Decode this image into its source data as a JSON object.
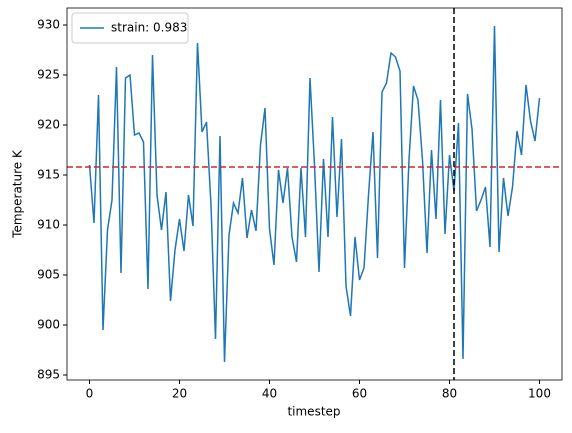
{
  "chart_data": {
    "type": "line",
    "xlabel": "timestep",
    "ylabel": "Temperature K",
    "x": [
      0,
      1,
      2,
      3,
      4,
      5,
      6,
      7,
      8,
      9,
      10,
      11,
      12,
      13,
      14,
      15,
      16,
      17,
      18,
      19,
      20,
      21,
      22,
      23,
      24,
      25,
      26,
      27,
      28,
      29,
      30,
      31,
      32,
      33,
      34,
      35,
      36,
      37,
      38,
      39,
      40,
      41,
      42,
      43,
      44,
      45,
      46,
      47,
      48,
      49,
      50,
      51,
      52,
      53,
      54,
      55,
      56,
      57,
      58,
      59,
      60,
      61,
      62,
      63,
      64,
      65,
      66,
      67,
      68,
      69,
      70,
      71,
      72,
      73,
      74,
      75,
      76,
      77,
      78,
      79,
      80,
      81,
      82,
      83,
      84,
      85,
      86,
      87,
      88,
      89,
      90,
      91,
      92,
      93,
      94,
      95,
      96,
      97,
      98,
      99,
      100
    ],
    "series": [
      {
        "name": "strain: 0.983",
        "color": "#1f77b4",
        "values": [
          916,
          910.2,
          923,
          899.5,
          909.5,
          912.5,
          925.8,
          905.2,
          924.7,
          925,
          919,
          919.2,
          918.3,
          903.6,
          927,
          913,
          909.5,
          913.3,
          902.4,
          907.5,
          910.6,
          907.4,
          913,
          909.9,
          928.2,
          919.3,
          920.3,
          912,
          898.6,
          918.9,
          896.3,
          909,
          912.2,
          911.2,
          914.7,
          908.7,
          911.5,
          909.4,
          918,
          921.7,
          909.6,
          906,
          915.5,
          912.2,
          915.7,
          908.8,
          906.3,
          915.7,
          908.8,
          924.7,
          916,
          905.3,
          916.6,
          908.8,
          920.8,
          910.8,
          918.6,
          903.9,
          900.9,
          908.8,
          904.5,
          905.7,
          913,
          919.3,
          906.7,
          923.3,
          924.2,
          927.2,
          926.8,
          925.4,
          905.7,
          916.5,
          923.9,
          922.5,
          916.5,
          907.2,
          917.5,
          910.6,
          922.5,
          909.1,
          917,
          913.4,
          920.2,
          896.6,
          923.1,
          919.6,
          911.4,
          912.5,
          913.8,
          907.8,
          929.9,
          907.3,
          914.7,
          910.9,
          913.8,
          919.4,
          917,
          924,
          920.4,
          918.4,
          922.7
        ]
      }
    ],
    "hline": {
      "value": 915.8,
      "color": "#d62728"
    },
    "vline": {
      "value": 81,
      "color": "#000000"
    },
    "xlim": [
      -5,
      105
    ],
    "xticks": [
      0,
      20,
      40,
      60,
      80,
      100
    ],
    "ylim": [
      894.5,
      931.7
    ],
    "yticks": [
      895,
      900,
      905,
      910,
      915,
      920,
      925,
      930
    ],
    "legend": "upper left"
  }
}
